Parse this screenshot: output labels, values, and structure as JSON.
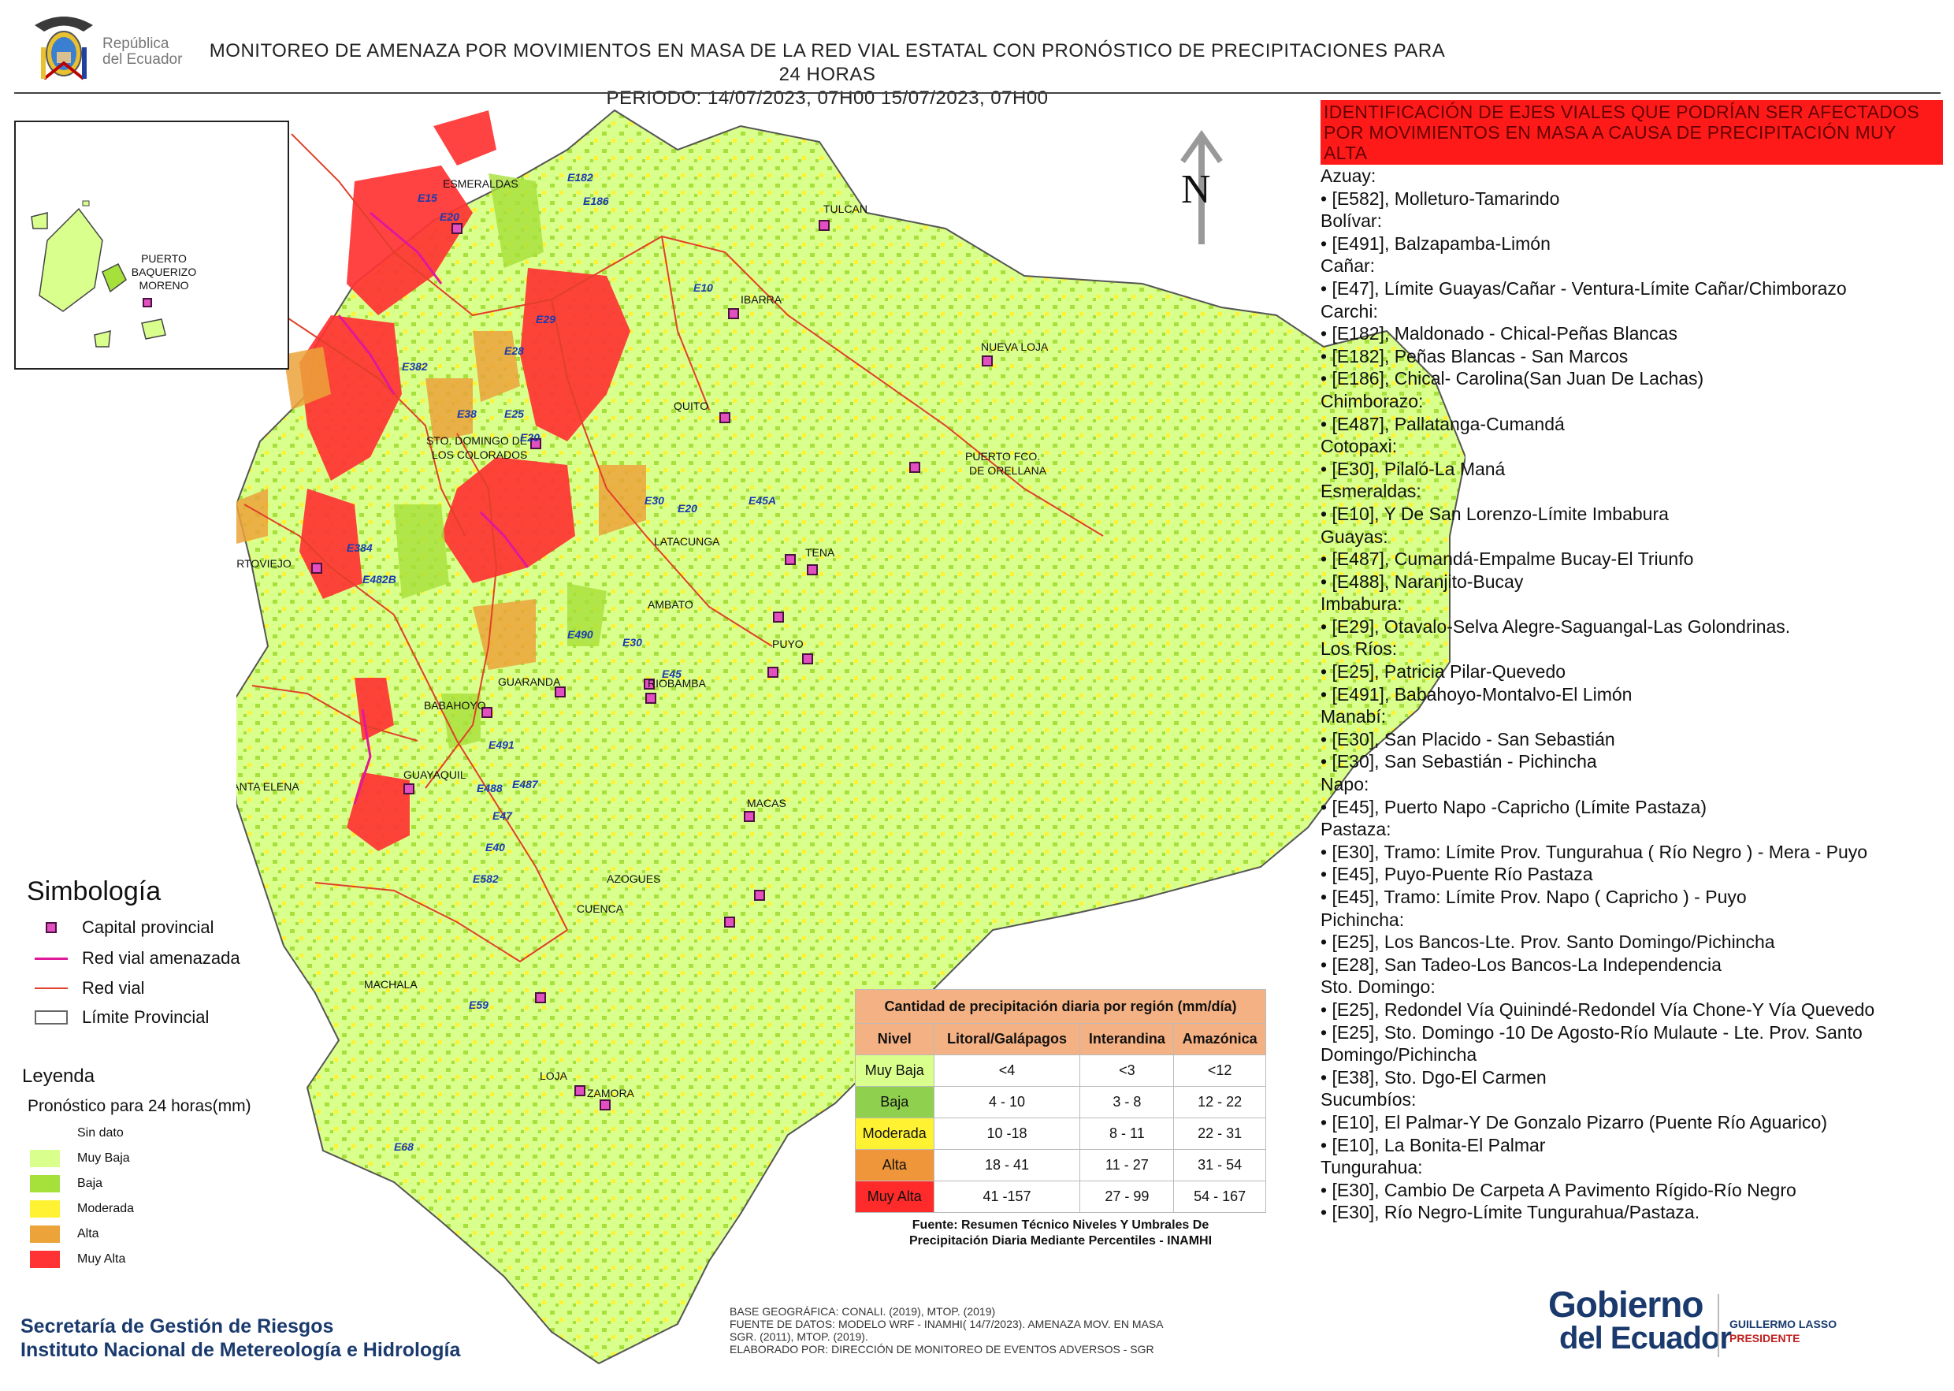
{
  "header": {
    "logo_text_line1": "República",
    "logo_text_line2": "del Ecuador",
    "title_line1": "MONITOREO DE AMENAZA POR MOVIMIENTOS EN MASA DE LA RED VIAL  ESTATAL  CON PRONÓSTICO  DE  PRECIPITACIONES PARA 24 HORAS",
    "title_line2": "PERIODO: 14/07/2023, 07H00 15/07/2023, 07H00"
  },
  "inset": {
    "city_label_1": "PUERTO",
    "city_label_2": "BAQUERIZO",
    "city_label_3": "MORENO"
  },
  "north_label": "N",
  "map_labels": {
    "cities": [
      "ESMERALDAS",
      "TULCAN",
      "IBARRA",
      "NUEVA LOJA",
      "QUITO",
      "STO. DOMINGO DE",
      "LOS COLORADOS",
      "PUERTO FCO.",
      "DE ORELLANA",
      "LATACUNGA",
      "TENA",
      "PORTOVIEJO",
      "AMBATO",
      "PUYO",
      "GUARANDA",
      "RIOBAMBA",
      "BABAHOYO",
      "SANTA ELENA",
      "GUAYAQUIL",
      "MACAS",
      "AZOGUES",
      "CUENCA",
      "MACHALA",
      "LOJA",
      "ZAMORA"
    ],
    "roads": [
      "E15",
      "E20",
      "E15-",
      "E182",
      "E186",
      "E10",
      "E29",
      "E28",
      "E382",
      "E38",
      "E25",
      "E20",
      "E45A",
      "E20",
      "E30",
      "E45A",
      "E384",
      "E482B",
      "E30",
      "E490",
      "E45",
      "E491",
      "E487",
      "E488",
      "E487",
      "E47",
      "E40",
      "E582",
      "E59",
      "E68"
    ]
  },
  "simbologia": {
    "title": "Simbología",
    "items": [
      "Capital provincial",
      "Red vial amenazada",
      "Red vial",
      "Límite Provincial"
    ]
  },
  "leyenda": {
    "title": "Leyenda",
    "subtitle": "Pronóstico para 24 horas(mm)",
    "items": [
      {
        "label": "Sin dato",
        "color": "#ffffff"
      },
      {
        "label": "Muy Baja",
        "color": "#d9ff8c"
      },
      {
        "label": "Baja",
        "color": "#a6e03a"
      },
      {
        "label": "Moderada",
        "color": "#fff233"
      },
      {
        "label": "Alta",
        "color": "#eba33a"
      },
      {
        "label": "Muy Alta",
        "color": "#ff3333"
      }
    ]
  },
  "precip_table": {
    "caption": "Cantidad de precipitación diaria por región (mm/día)",
    "headers": [
      "Nivel",
      "Litoral/Galápagos",
      "Interandina",
      "Amazónica"
    ],
    "rows": [
      {
        "nivel": "Muy Baja",
        "litoral": "<4",
        "interandina": "<3",
        "amazonica": "<12",
        "color": "#d9ff8c"
      },
      {
        "nivel": "Baja",
        "litoral": "4 - 10",
        "interandina": "3 - 8",
        "amazonica": "12 - 22",
        "color": "#8fd14f"
      },
      {
        "nivel": "Moderada",
        "litoral": "10 -18",
        "interandina": "8 - 11",
        "amazonica": "22 - 31",
        "color": "#fff233"
      },
      {
        "nivel": "Alta",
        "litoral": "18 - 41",
        "interandina": "11 - 27",
        "amazonica": "31 - 54",
        "color": "#f0963a"
      },
      {
        "nivel": "Muy Alta",
        "litoral": "41 -157",
        "interandina": "27 - 99",
        "amazonica": "54 - 167",
        "color": "#ff2a2a"
      }
    ],
    "source_line1": "Fuente: Resumen Técnico Niveles Y Umbrales De",
    "source_line2": "Precipitación Diaria Mediante Percentiles - INAMHI"
  },
  "right_panel": {
    "alert_title": "IDENTIFICACIÓN DE EJES VIALES QUE PODRÍAN SER AFECTADOS POR MOVIMIENTOS EN MASA A CAUSA DE PRECIPITACIÓN MUY ALTA",
    "lines": [
      "Azuay:",
      "• [E582], Molleturo-Tamarindo",
      "Bolívar:",
      "• [E491], Balzapamba-Limón",
      "Cañar:",
      "• [E47], Límite Guayas/Cañar - Ventura-Límite Cañar/Chimborazo",
      "Carchi:",
      "• [E182], Maldonado - Chical-Peñas Blancas",
      "• [E182], Peñas Blancas - San Marcos",
      "• [E186], Chical- Carolina(San Juan De Lachas)",
      "Chimborazo:",
      "• [E487], Pallatanga-Cumandá",
      "Cotopaxi:",
      "• [E30], Pilaló-La Maná",
      "Esmeraldas:",
      "• [E10], Y De San Lorenzo-Límite Imbabura",
      "Guayas:",
      "• [E487], Cumandá-Empalme Bucay-El Triunfo",
      "• [E488], Naranjito-Bucay",
      "Imbabura:",
      "• [E29], Otavalo-Selva Alegre-Saguangal-Las Golondrinas.",
      "Los Ríos:",
      "• [E25], Patricia Pilar-Quevedo",
      "• [E491], Babahoyo-Montalvo-El Limón",
      "Manabí:",
      "• [E30], San Placido - San Sebastián",
      "• [E30], San Sebastián - Pichincha",
      "Napo:",
      "• [E45], Puerto Napo -Capricho (Límite Pastaza)",
      "Pastaza:",
      "• [E30], Tramo: Límite Prov. Tungurahua ( Río Negro ) - Mera - Puyo",
      "• [E45], Puyo-Puente Río Pastaza",
      "• [E45], Tramo: Límite Prov. Napo ( Capricho ) - Puyo",
      "Pichincha:",
      "• [E25], Los Bancos-Lte. Prov. Santo Domingo/Pichincha",
      "• [E28], San Tadeo-Los Bancos-La Independencia",
      "Sto. Domingo:",
      "• [E25], Redondel Vía Quinindé-Redondel Vía Chone-Y Vía Quevedo",
      "• [E25], Sto. Domingo -10 De Agosto-Río Mulaute - Lte. Prov. Santo Domingo/Pichincha",
      "• [E38], Sto. Dgo-El Carmen",
      "Sucumbíos:",
      "• [E10], El Palmar-Y De Gonzalo Pizarro (Puente Río Aguarico)",
      "• [E10], La Bonita-El Palmar",
      "Tungurahua:",
      "• [E30], Cambio De Carpeta A Pavimento Rígido-Río Negro",
      "• [E30], Río Negro-Límite Tungurahua/Pastaza."
    ]
  },
  "footer": {
    "org_line1": "Secretaría de Gestión de Riesgos",
    "org_line2": "Instituto Nacional de Metereología e Hidrología",
    "src_line1": "BASE GEOGRÁFICA: CONALI. (2019), MTOP. (2019)",
    "src_line2": "FUENTE DE DATOS: MODELO WRF - INAMHI( 14/7/2023).  AMENAZA MOV. EN MASA",
    "src_line3": "SGR. (2011), MTOP. (2019).",
    "src_line4": "ELABORADO POR: DIRECCIÓN DE MONITOREO DE EVENTOS ADVERSOS - SGR",
    "gob_line1": "Gobierno",
    "gob_line2": "del Ecuador",
    "president_name": "GUILLERMO LASSO",
    "president_title": "PRESIDENTE"
  },
  "colors": {
    "muy_baja": "#d9ff8c",
    "baja": "#a6e03a",
    "moderada": "#fff233",
    "alta": "#eba33a",
    "muy_alta": "#ff3333",
    "red_vial": "#e0402a",
    "red_amenazada": "#e0189a",
    "capital": "#b0208f"
  }
}
